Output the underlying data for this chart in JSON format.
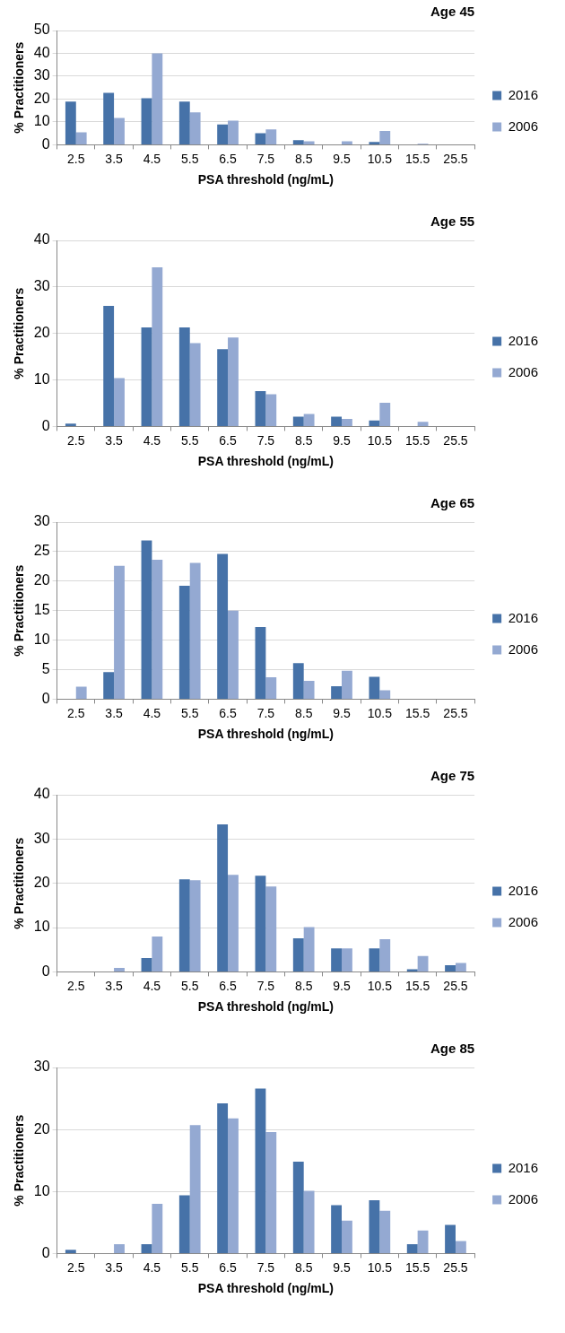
{
  "chart_data": [
    {
      "type": "bar",
      "title": "Age 45",
      "xlabel": "PSA threshold (ng/mL)",
      "ylabel": "% Practitioners",
      "categories": [
        "2.5",
        "3.5",
        "4.5",
        "5.5",
        "6.5",
        "7.5",
        "8.5",
        "9.5",
        "10.5",
        "15.5",
        "25.5"
      ],
      "series": [
        {
          "name": "2016",
          "color": "#4672a8",
          "values": [
            18.9,
            22.7,
            20.4,
            18.9,
            8.9,
            5.1,
            2.0,
            0,
            1.2,
            0,
            0
          ]
        },
        {
          "name": "2006",
          "color": "#94a9d2",
          "values": [
            5.5,
            11.7,
            40,
            14.2,
            10.6,
            6.7,
            1.5,
            1.5,
            6.0,
            0.5,
            0
          ]
        }
      ],
      "ylim": [
        0,
        50
      ],
      "yticks": [
        0,
        10,
        20,
        30,
        40,
        50
      ],
      "grid": "y",
      "legend": "right"
    },
    {
      "type": "bar",
      "title": "Age 55",
      "xlabel": "PSA threshold (ng/mL)",
      "ylabel": "% Practitioners",
      "categories": [
        "2.5",
        "3.5",
        "4.5",
        "5.5",
        "6.5",
        "7.5",
        "8.5",
        "9.5",
        "10.5",
        "15.5",
        "25.5"
      ],
      "series": [
        {
          "name": "2016",
          "color": "#4672a8",
          "values": [
            0.6,
            25.9,
            21.3,
            21.3,
            16.6,
            7.6,
            2.1,
            2.1,
            1.3,
            0,
            0
          ]
        },
        {
          "name": "2006",
          "color": "#94a9d2",
          "values": [
            0,
            10.4,
            34.2,
            17.9,
            19.1,
            6.9,
            2.7,
            1.6,
            5.1,
            1.0,
            0
          ]
        }
      ],
      "ylim": [
        0,
        40
      ],
      "yticks": [
        0,
        10,
        20,
        30,
        40
      ],
      "grid": "y",
      "legend": "right"
    },
    {
      "type": "bar",
      "title": "Age 65",
      "xlabel": "PSA threshold (ng/mL)",
      "ylabel": "% Practitioners",
      "categories": [
        "2.5",
        "3.5",
        "4.5",
        "5.5",
        "6.5",
        "7.5",
        "8.5",
        "9.5",
        "10.5",
        "15.5",
        "25.5"
      ],
      "series": [
        {
          "name": "2016",
          "color": "#4672a8",
          "values": [
            0,
            4.6,
            26.9,
            19.2,
            24.6,
            12.2,
            6.1,
            2.2,
            3.8,
            0,
            0
          ]
        },
        {
          "name": "2006",
          "color": "#94a9d2",
          "values": [
            2.1,
            22.6,
            23.6,
            23.1,
            15.0,
            3.7,
            3.1,
            4.8,
            1.5,
            0,
            0
          ]
        }
      ],
      "ylim": [
        0,
        30
      ],
      "yticks": [
        0,
        5,
        10,
        15,
        20,
        25,
        30
      ],
      "grid": "y",
      "legend": "right"
    },
    {
      "type": "bar",
      "title": "Age 75",
      "xlabel": "PSA threshold (ng/mL)",
      "ylabel": "% Practitioners",
      "categories": [
        "2.5",
        "3.5",
        "4.5",
        "5.5",
        "6.5",
        "7.5",
        "8.5",
        "9.5",
        "10.5",
        "15.5",
        "25.5"
      ],
      "series": [
        {
          "name": "2016",
          "color": "#4672a8",
          "values": [
            0,
            0,
            3.1,
            20.9,
            33.3,
            21.7,
            7.6,
            5.3,
            5.3,
            0.6,
            1.5
          ]
        },
        {
          "name": "2006",
          "color": "#94a9d2",
          "values": [
            0,
            0.9,
            8.0,
            20.7,
            21.9,
            19.3,
            10.1,
            5.3,
            7.4,
            3.6,
            2.0
          ]
        }
      ],
      "ylim": [
        0,
        40
      ],
      "yticks": [
        0,
        10,
        20,
        30,
        40
      ],
      "grid": "y",
      "legend": "right"
    },
    {
      "type": "bar",
      "title": "Age 85",
      "xlabel": "PSA threshold (ng/mL)",
      "ylabel": "% Practitioners",
      "categories": [
        "2.5",
        "3.5",
        "4.5",
        "5.5",
        "6.5",
        "7.5",
        "8.5",
        "9.5",
        "10.5",
        "15.5",
        "25.5"
      ],
      "series": [
        {
          "name": "2016",
          "color": "#4672a8",
          "values": [
            0.6,
            0,
            1.5,
            9.4,
            24.2,
            26.6,
            14.8,
            7.8,
            8.6,
            1.5,
            4.6
          ]
        },
        {
          "name": "2006",
          "color": "#94a9d2",
          "values": [
            0,
            1.5,
            8.0,
            20.7,
            21.8,
            19.6,
            10.1,
            5.3,
            6.9,
            3.7,
            2.0
          ]
        }
      ],
      "ylim": [
        0,
        30
      ],
      "yticks": [
        0,
        10,
        20,
        30
      ],
      "grid": "y",
      "legend": "right"
    }
  ]
}
